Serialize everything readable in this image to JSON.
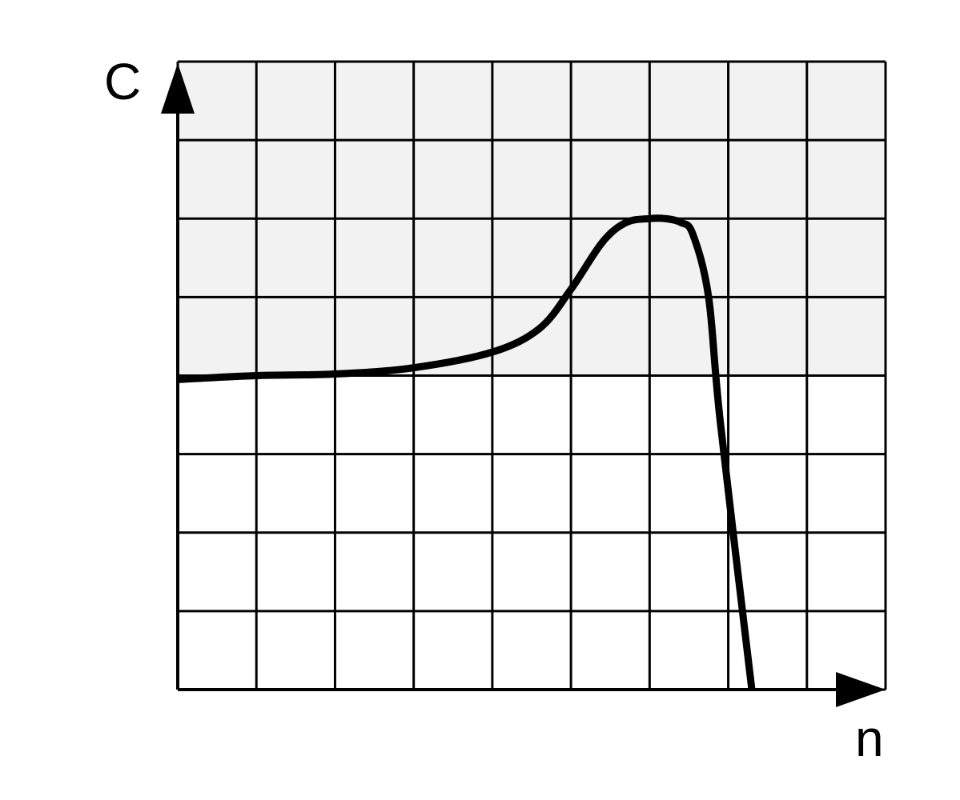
{
  "chart_data": {
    "type": "line",
    "title": "",
    "xlabel": "n",
    "ylabel": "C",
    "xlim": [
      0,
      9
    ],
    "ylim": [
      0,
      8
    ],
    "grid": true,
    "grid_divisions": {
      "x": 9,
      "y": 8
    },
    "shaded_band": {
      "y_from": 4,
      "y_to": 8,
      "color": "#f2f2f2"
    },
    "series": [
      {
        "x": [
          0,
          1,
          2,
          3,
          4,
          4.6,
          5,
          5.4,
          5.7,
          6.0,
          6.2,
          6.4,
          6.55,
          6.75,
          6.9,
          7.3
        ],
        "y": [
          3.95,
          4.0,
          4.02,
          4.1,
          4.3,
          4.6,
          5.1,
          5.7,
          5.95,
          6.0,
          6.0,
          5.95,
          5.8,
          5.0,
          3.4,
          0.0
        ],
        "color": "#000000"
      }
    ],
    "colors": {
      "line": "#000000",
      "grid": "#000000",
      "shade": "#f2f2f2",
      "background": "#ffffff"
    }
  }
}
